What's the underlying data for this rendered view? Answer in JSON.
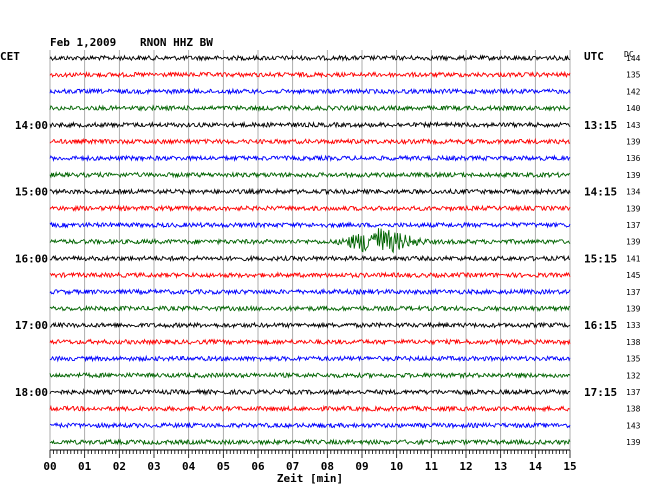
{
  "header": {
    "date": "Feb 1,2009",
    "station": "RNON HHZ BW",
    "left_zone": "CET",
    "right_zone": "UTC",
    "dc_label": "DC"
  },
  "chart_data": {
    "type": "line",
    "title": "Feb 1,2009   RNON HHZ BW",
    "xlabel": "Zeit [min]",
    "xlim": [
      0,
      15
    ],
    "x_ticks": [
      "00",
      "01",
      "02",
      "03",
      "04",
      "05",
      "06",
      "07",
      "08",
      "09",
      "10",
      "11",
      "12",
      "13",
      "14",
      "15"
    ],
    "grid": true,
    "trace_colors": [
      "#000000",
      "#ff0000",
      "#0000ff",
      "#006400"
    ],
    "rows": 24,
    "left_hour_labels": [
      {
        "row": 4,
        "label": "14:00"
      },
      {
        "row": 8,
        "label": "15:00"
      },
      {
        "row": 12,
        "label": "16:00"
      },
      {
        "row": 16,
        "label": "17:00"
      },
      {
        "row": 20,
        "label": "18:00"
      }
    ],
    "right_hour_labels": [
      {
        "row": 0,
        "label": "UTC"
      },
      {
        "row": 4,
        "label": "13:15"
      },
      {
        "row": 8,
        "label": "14:15"
      },
      {
        "row": 12,
        "label": "15:15"
      },
      {
        "row": 16,
        "label": "16:15"
      },
      {
        "row": 20,
        "label": "17:15"
      }
    ],
    "dc_values": [
      "144",
      "135",
      "142",
      "140",
      "143",
      "139",
      "136",
      "139",
      "134",
      "139",
      "137",
      "139",
      "141",
      "145",
      "137",
      "139",
      "133",
      "138",
      "135",
      "132",
      "137",
      "138",
      "143",
      "139"
    ],
    "event": {
      "row": 11,
      "start_min": 8.2,
      "end_min": 11.0,
      "peak_min": 9.4
    }
  }
}
